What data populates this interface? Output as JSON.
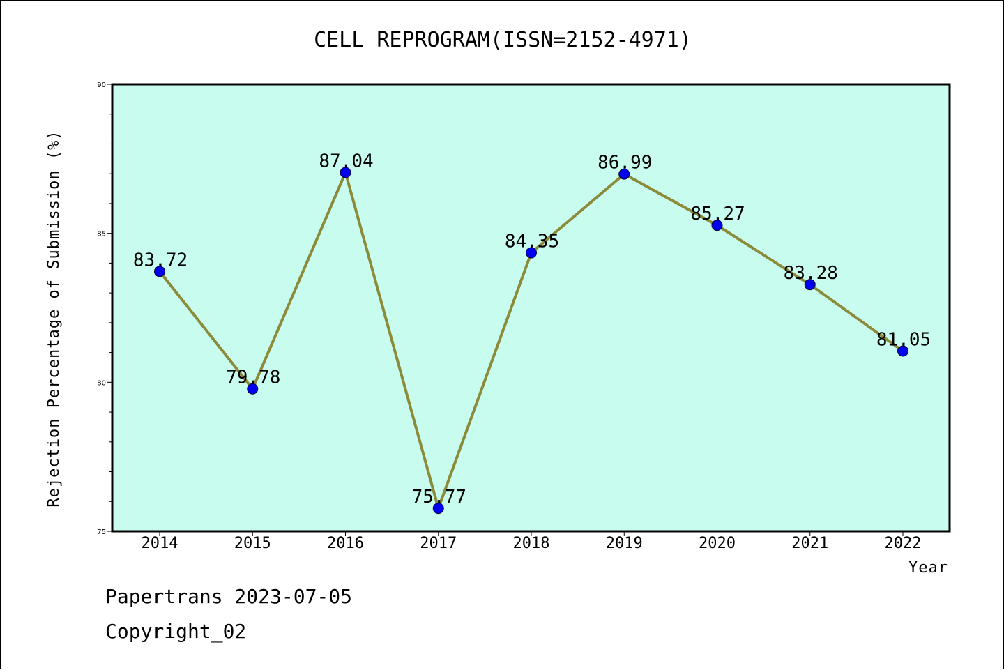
{
  "chart_data": {
    "type": "line",
    "title": "CELL REPROGRAM(ISSN=2152-4971)",
    "xlabel": "Year",
    "ylabel": "Rejection Percentage of Submission (%)",
    "categories": [
      "2014",
      "2015",
      "2016",
      "2017",
      "2018",
      "2019",
      "2020",
      "2021",
      "2022"
    ],
    "values": [
      83.72,
      79.78,
      87.04,
      75.77,
      84.35,
      86.99,
      85.27,
      83.28,
      81.05
    ],
    "data_labels": [
      "83.72",
      "79.78",
      "87.04",
      "75.77",
      "84.35",
      "86.99",
      "85.27",
      "83.28",
      "81.05"
    ],
    "ylim": [
      75,
      90
    ],
    "yticks": [
      "75",
      "80",
      "85",
      "90"
    ],
    "grid": false,
    "colors": {
      "plot_background": "#c8fcee",
      "line": "#8b8b3a",
      "marker": "#0000ee"
    }
  },
  "footer": {
    "line1": "Papertrans 2023-07-05",
    "line2": "Copyright_02"
  }
}
